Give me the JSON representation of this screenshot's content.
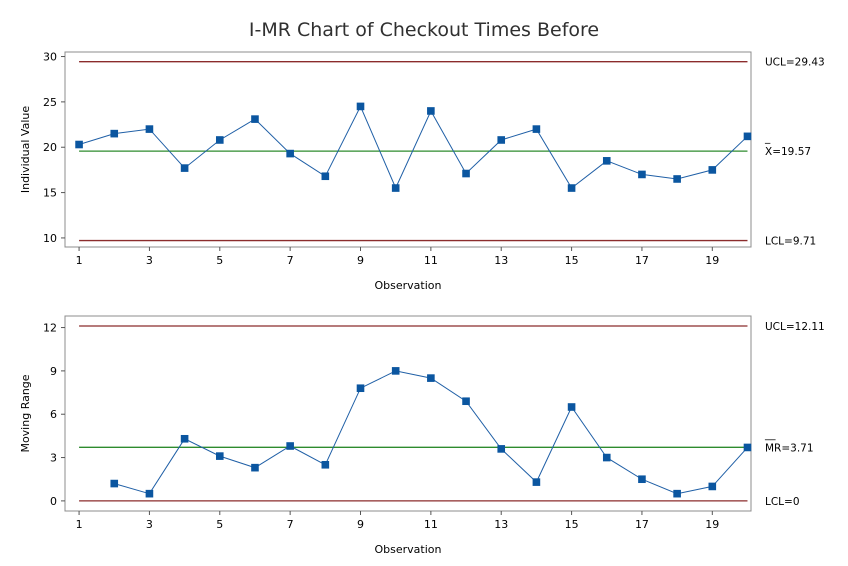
{
  "title": "I-MR Chart of Checkout Times Before",
  "colors": {
    "data": "#1f5fa6",
    "marker": "#0b56a0",
    "center": "#2e8b2e",
    "limit": "#8b2c2c",
    "frame": "#8c8c8c"
  },
  "chart_data": [
    {
      "type": "line",
      "name": "individuals",
      "xlabel": "Observation",
      "ylabel": "Individual Value",
      "x": [
        1,
        2,
        3,
        4,
        5,
        6,
        7,
        8,
        9,
        10,
        11,
        12,
        13,
        14,
        15,
        16,
        17,
        18,
        19,
        20
      ],
      "values": [
        20.3,
        21.5,
        22.0,
        17.7,
        20.8,
        23.1,
        19.3,
        16.8,
        24.5,
        15.5,
        24.0,
        17.1,
        20.8,
        22.0,
        15.5,
        18.5,
        17.0,
        16.5,
        17.5,
        21.2
      ],
      "xticks": [
        1,
        3,
        5,
        7,
        9,
        11,
        13,
        15,
        17,
        19
      ],
      "yticks": [
        10,
        15,
        20,
        25,
        30
      ],
      "ylim": [
        9.0,
        30.5
      ],
      "xlim": [
        0.6,
        20.1
      ],
      "ucl": 29.43,
      "center": 19.57,
      "lcl": 9.71,
      "ucl_label": "UCL=29.43",
      "center_label_bar": "_",
      "center_label": "X=19.57",
      "lcl_label": "LCL=9.71"
    },
    {
      "type": "line",
      "name": "moving-range",
      "xlabel": "Observation",
      "ylabel": "Moving Range",
      "x": [
        2,
        3,
        4,
        5,
        6,
        7,
        8,
        9,
        10,
        11,
        12,
        13,
        14,
        15,
        16,
        17,
        18,
        19,
        20
      ],
      "values": [
        1.2,
        0.5,
        4.3,
        3.1,
        2.3,
        3.8,
        2.5,
        7.8,
        9.0,
        8.5,
        6.9,
        3.6,
        1.3,
        6.5,
        3.0,
        1.5,
        0.5,
        1.0,
        3.7
      ],
      "xticks": [
        1,
        3,
        5,
        7,
        9,
        11,
        13,
        15,
        17,
        19
      ],
      "yticks": [
        0,
        3,
        6,
        9,
        12
      ],
      "ylim": [
        -0.7,
        12.8
      ],
      "xlim": [
        0.6,
        20.1
      ],
      "ucl": 12.11,
      "center": 3.71,
      "lcl": 0,
      "ucl_label": "UCL=12.11",
      "center_label_bar": "__",
      "center_label": "MR=3.71",
      "lcl_label": "LCL=0"
    }
  ]
}
